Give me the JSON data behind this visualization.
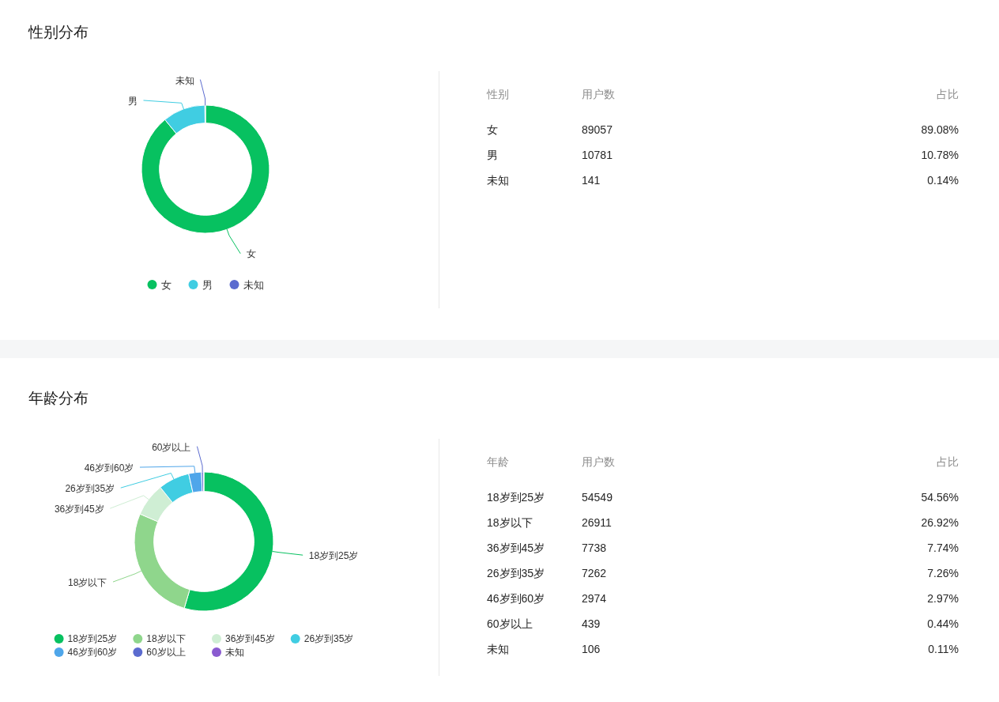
{
  "chart_data": [
    {
      "type": "donut",
      "title": "性别分布",
      "categories": [
        "女",
        "男",
        "未知"
      ],
      "values": [
        89.08,
        10.78,
        0.14
      ],
      "colors": [
        "#07c160",
        "#40cde2",
        "#5b6bcf"
      ],
      "legend": "bottom"
    },
    {
      "type": "other",
      "xlabel": "性别",
      "categories": [
        "女",
        "男",
        "未知"
      ],
      "data_labels": true,
      "series": [
        {
          "name": "用户数",
          "values": [
            89057,
            10781,
            141
          ]
        },
        {
          "name": "占比",
          "values": [
            89.08,
            10.78,
            0.14
          ],
          "value_labels": [
            "89.08%",
            "10.78%",
            "0.14%"
          ]
        }
      ]
    },
    {
      "type": "donut",
      "title": "年龄分布",
      "categories": [
        "18岁到25岁",
        "18岁以下",
        "36岁到45岁",
        "26岁到35岁",
        "46岁到60岁",
        "60岁以上",
        "未知"
      ],
      "values": [
        54.56,
        26.92,
        7.74,
        7.26,
        2.97,
        0.44,
        0.11
      ],
      "colors": [
        "#07c160",
        "#8fd68c",
        "#cfeed4",
        "#40cde2",
        "#4fa6ea",
        "#5b6bcf",
        "#8a5bd0"
      ],
      "legend": "bottom"
    },
    {
      "type": "other",
      "xlabel": "年龄",
      "categories": [
        "18岁到25岁",
        "18岁以下",
        "36岁到45岁",
        "26岁到35岁",
        "46岁到60岁",
        "60岁以上",
        "未知"
      ],
      "data_labels": true,
      "series": [
        {
          "name": "用户数",
          "values": [
            54549,
            26911,
            7738,
            7262,
            2974,
            439,
            106
          ]
        },
        {
          "name": "占比",
          "values": [
            54.56,
            26.92,
            7.74,
            7.26,
            2.97,
            0.44,
            0.11
          ],
          "value_labels": [
            "54.56%",
            "26.92%",
            "7.74%",
            "7.26%",
            "2.97%",
            "0.44%",
            "0.11%"
          ]
        }
      ]
    }
  ]
}
